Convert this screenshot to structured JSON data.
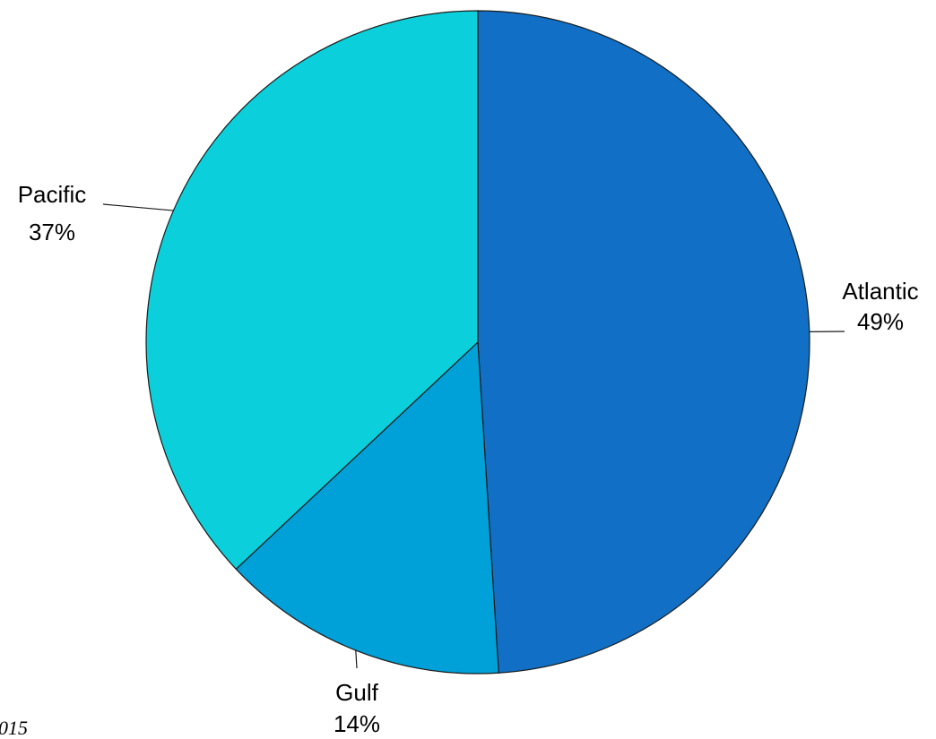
{
  "chart_data": {
    "type": "pie",
    "categories": [
      "Atlantic",
      "Gulf",
      "Pacific"
    ],
    "values": [
      49,
      14,
      37
    ],
    "percent_labels": [
      "49%",
      "14%",
      "37%"
    ],
    "colors": [
      "#1170c5",
      "#00a0d8",
      "#0bd0db"
    ],
    "title": "",
    "legend": "none",
    "start_angle": "12 o'clock",
    "direction": "clockwise"
  },
  "footnote": "015"
}
